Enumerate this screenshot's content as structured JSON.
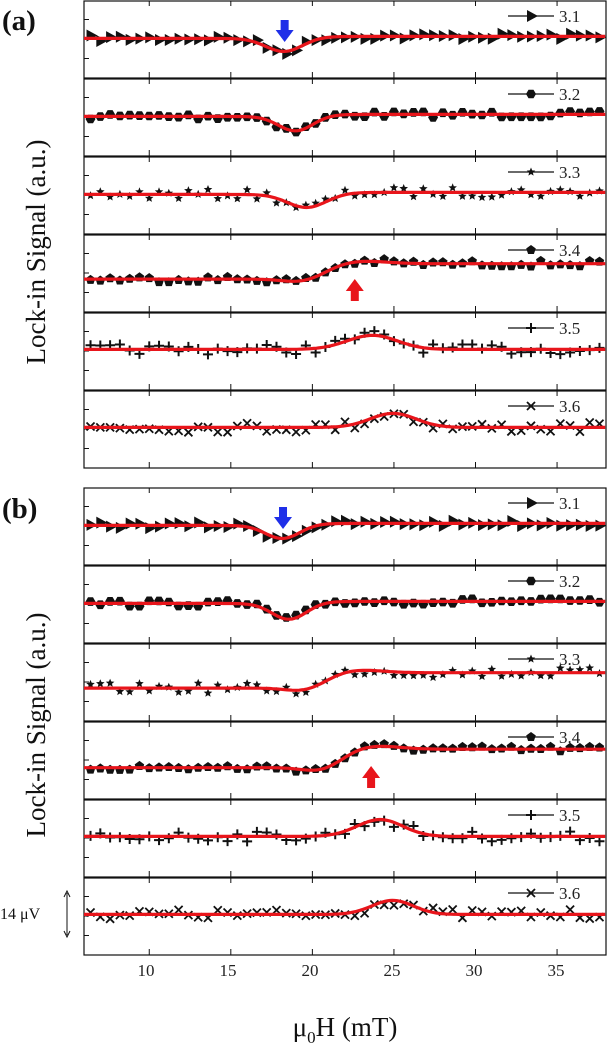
{
  "chart_data": [
    {
      "panel": "(a)",
      "type": "line",
      "ylabel": "Lock-in Signal (a.u.)",
      "xlabel": "μ0H (mT)",
      "xlim": [
        6,
        38
      ],
      "series": [
        {
          "name": "3.1",
          "marker": "triangle-right",
          "feature": "dip",
          "center": 18.3,
          "width": 1.6,
          "amplitude": -1.0,
          "marker_arrow": "blue-down"
        },
        {
          "name": "3.2",
          "marker": "hexagon",
          "feature": "dip",
          "center": 19.0,
          "width": 1.5,
          "amplitude": -1.1
        },
        {
          "name": "3.3",
          "marker": "star",
          "feature": "dip",
          "center": 19.7,
          "width": 1.7,
          "amplitude": -1.0
        },
        {
          "name": "3.4",
          "marker": "pentagon",
          "feature": "dispersive",
          "center": 21.0,
          "width": 1.6,
          "amplitude": 1.0,
          "marker_arrow": "red-up"
        },
        {
          "name": "3.5",
          "marker": "plus",
          "feature": "peak",
          "center": 23.5,
          "width": 2.2,
          "amplitude": 1.0
        },
        {
          "name": "3.6",
          "marker": "cross",
          "feature": "peak",
          "center": 24.8,
          "width": 2.0,
          "amplitude": 1.0
        }
      ]
    },
    {
      "panel": "(b)",
      "type": "line",
      "ylabel": "Lock-in Signal (a.u.)",
      "xlabel": "μ0H (mT)",
      "xlim": [
        6,
        38
      ],
      "xticks": [
        10,
        15,
        20,
        25,
        30,
        35
      ],
      "scale_bar": "14 μV",
      "series": [
        {
          "name": "3.1",
          "marker": "triangle-right",
          "feature": "dip",
          "center": 18.2,
          "width": 1.5,
          "amplitude": -1.0,
          "marker_arrow": "blue-down"
        },
        {
          "name": "3.2",
          "marker": "hexagon",
          "feature": "dip",
          "center": 18.6,
          "width": 1.5,
          "amplitude": -1.2
        },
        {
          "name": "3.3",
          "marker": "star",
          "feature": "dispersive",
          "center": 21.0,
          "width": 1.5,
          "amplitude": 1.0
        },
        {
          "name": "3.4",
          "marker": "pentagon",
          "feature": "dispersive",
          "center": 22.0,
          "width": 1.5,
          "amplitude": 1.2,
          "marker_arrow": "red-up"
        },
        {
          "name": "3.5",
          "marker": "plus",
          "feature": "peak",
          "center": 24.0,
          "width": 2.0,
          "amplitude": 1.2
        },
        {
          "name": "3.6",
          "marker": "cross",
          "feature": "peak",
          "center": 24.8,
          "width": 1.8,
          "amplitude": 1.0
        }
      ]
    }
  ],
  "labels": {
    "panel_a": "(a)",
    "panel_b": "(b)",
    "ylabel": "Lock-in Signal (a.u.)",
    "xlabel_main": "μ",
    "xlabel_sub": "0",
    "xlabel_rest": "H (mT)",
    "scale_bar": "14 μV",
    "xticks": [
      "10",
      "15",
      "20",
      "25",
      "30",
      "35"
    ]
  },
  "colors": {
    "fit": "#e8151b",
    "data": "#111111",
    "arrow_down": "#1f2fe8",
    "arrow_up": "#e8151b"
  }
}
